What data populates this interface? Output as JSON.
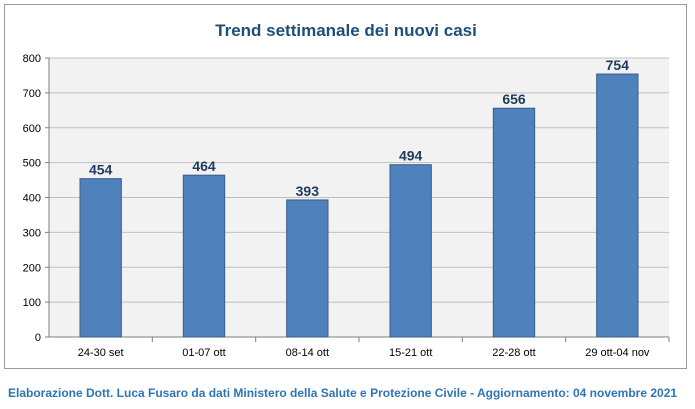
{
  "chart_data": {
    "type": "bar",
    "title": "Trend settimanale dei nuovi casi",
    "categories": [
      "24-30 set",
      "01-07 ott",
      "08-14 ott",
      "15-21 ott",
      "22-28 ott",
      "29 ott-04 nov"
    ],
    "values": [
      454,
      464,
      393,
      494,
      656,
      754
    ],
    "ylim": [
      0,
      800
    ],
    "yticks": [
      0,
      100,
      200,
      300,
      400,
      500,
      600,
      700,
      800
    ],
    "grid": true,
    "bar_color": "#4f81bd",
    "plot_background": "#f2f2f2"
  },
  "credit": "Elaborazione Dott. Luca Fusaro da dati Ministero della Salute e Protezione Civile - Aggiornamento: 04 novembre 2021"
}
